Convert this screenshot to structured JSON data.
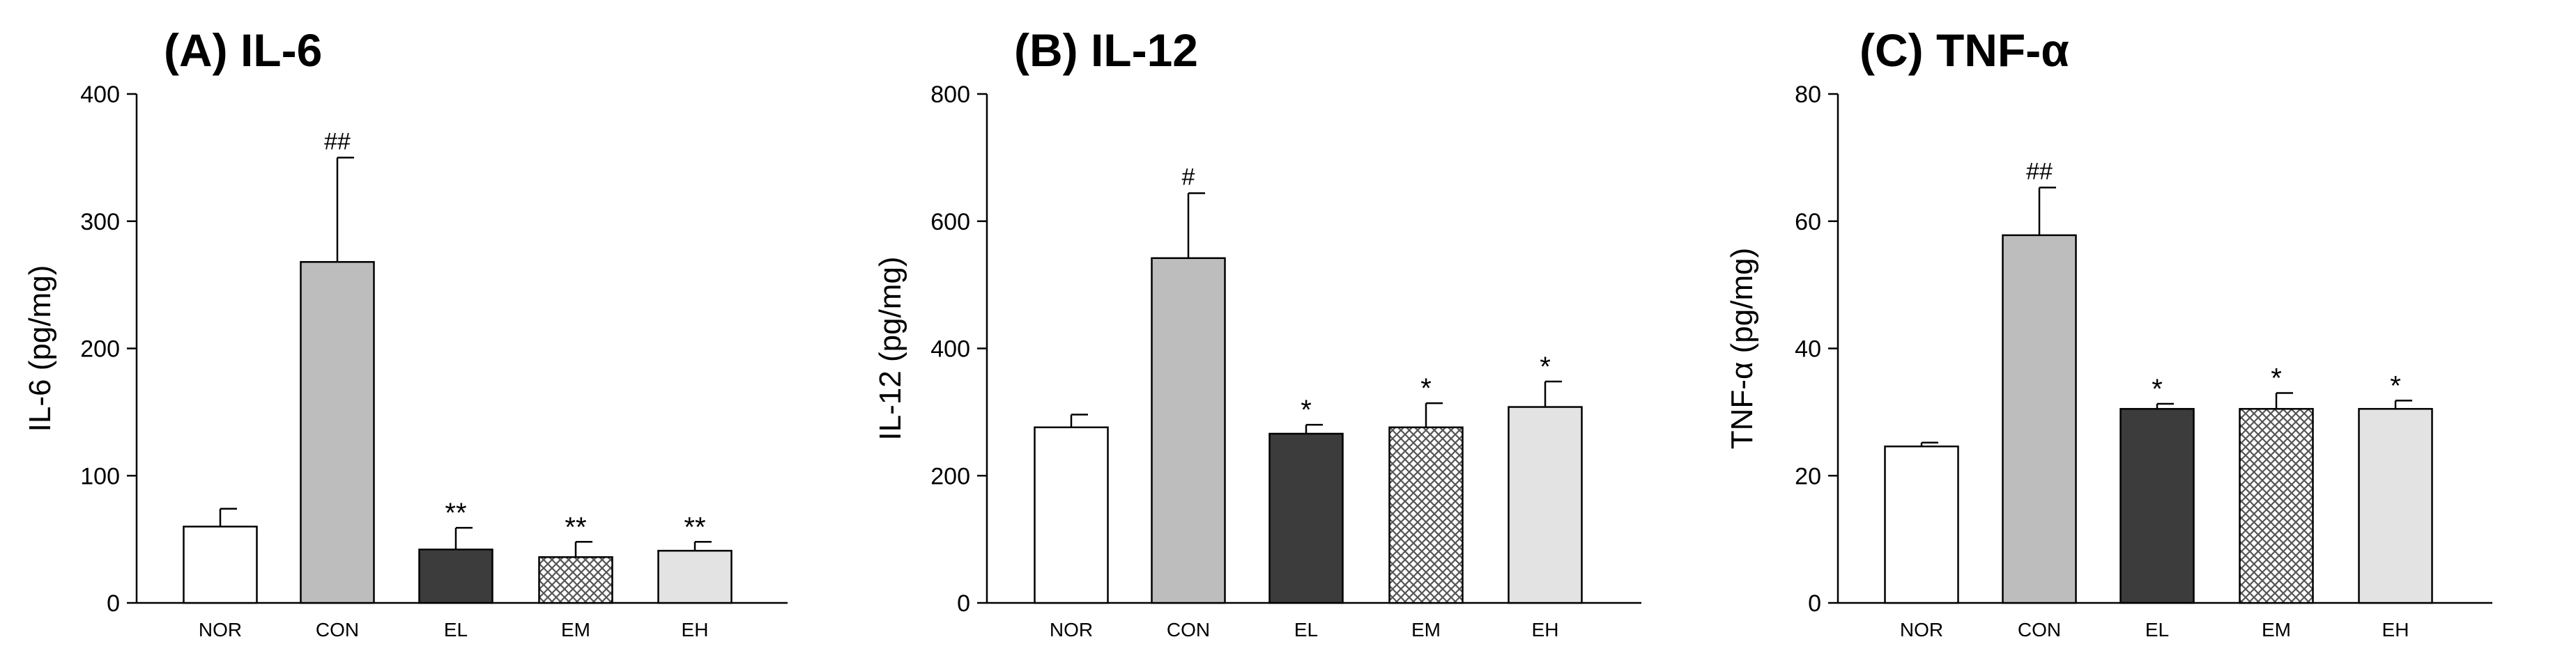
{
  "chart_data": [
    {
      "type": "bar",
      "title": "(A) IL-6",
      "ylabel": "IL-6 (pg/mg)",
      "xlabel": "",
      "ylim": [
        0,
        400
      ],
      "yticks": [
        "0",
        "100",
        "200",
        "300",
        "400"
      ],
      "categories": [
        "NOR",
        "CON",
        "EL",
        "EM",
        "EH"
      ],
      "values": [
        60,
        268,
        42,
        36,
        41
      ],
      "errors": [
        14,
        82,
        17,
        12,
        7
      ],
      "annotations": [
        "",
        "##",
        "**",
        "**",
        "**"
      ],
      "fills": [
        "#ffffff",
        "#bdbdbd",
        "#3c3c3c",
        "hatch",
        "#e3e3e3"
      ]
    },
    {
      "type": "bar",
      "title": "(B) IL-12",
      "ylabel": "IL-12 (pg/mg)",
      "xlabel": "",
      "ylim": [
        0,
        800
      ],
      "yticks": [
        "0",
        "200",
        "400",
        "600",
        "800"
      ],
      "categories": [
        "NOR",
        "CON",
        "EL",
        "EM",
        "EH"
      ],
      "values": [
        276,
        542,
        266,
        276,
        308
      ],
      "errors": [
        20,
        102,
        14,
        38,
        40
      ],
      "annotations": [
        "",
        "#",
        "*",
        "*",
        "*"
      ],
      "fills": [
        "#ffffff",
        "#bdbdbd",
        "#3c3c3c",
        "hatch",
        "#e3e3e3"
      ]
    },
    {
      "type": "bar",
      "title": "(C) TNF-α",
      "ylabel": "TNF-α (pg/mg)",
      "xlabel": "",
      "ylim": [
        0,
        80
      ],
      "yticks": [
        "0",
        "20",
        "40",
        "60",
        "80"
      ],
      "categories": [
        "NOR",
        "CON",
        "EL",
        "EM",
        "EH"
      ],
      "values": [
        24.6,
        57.8,
        30.5,
        30.5,
        30.5
      ],
      "errors": [
        0.6,
        7.5,
        0.8,
        2.5,
        1.3
      ],
      "annotations": [
        "",
        "##",
        "*",
        "*",
        "*"
      ],
      "fills": [
        "#ffffff",
        "#bdbdbd",
        "#3c3c3c",
        "hatch",
        "#e3e3e3"
      ]
    }
  ]
}
